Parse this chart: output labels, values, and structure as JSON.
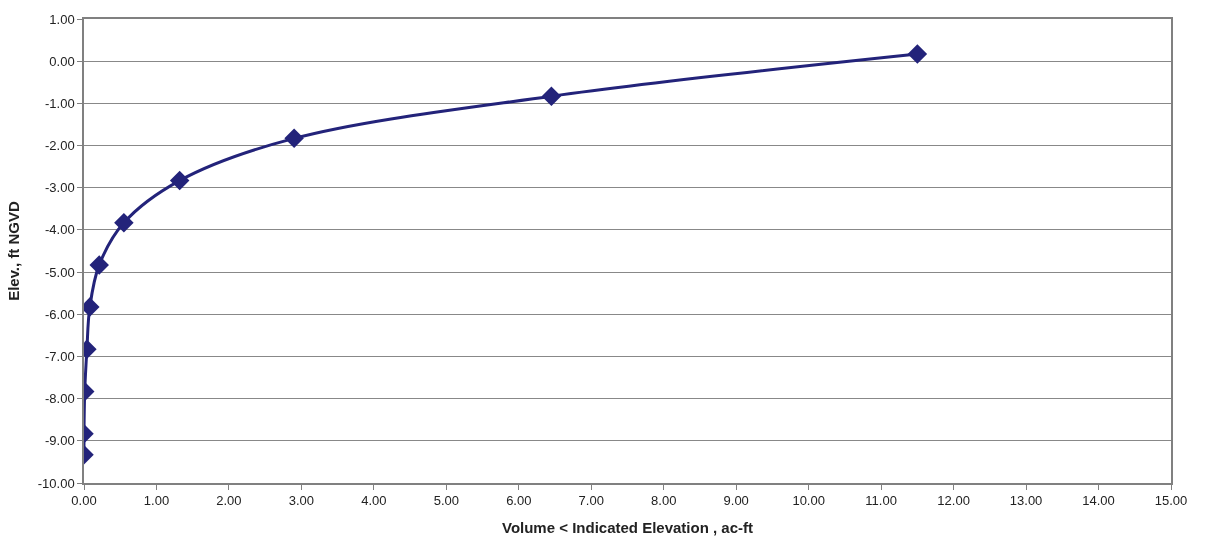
{
  "chart_data": {
    "type": "line",
    "xlabel": "Volume < Indicated Elevation , ac-ft",
    "ylabel": "Elev., ft NGVD",
    "x": [
      0,
      0,
      0.01,
      0.04,
      0.08,
      0.21,
      0.55,
      1.32,
      2.9,
      6.45,
      11.5
    ],
    "series": [
      {
        "color": "#23237a",
        "values": [
          -9.33,
          -8.83,
          -7.83,
          -6.83,
          -5.83,
          -4.83,
          -3.83,
          -2.83,
          -1.83,
          -0.83,
          0.17
        ]
      }
    ],
    "xlim": [
      0,
      15
    ],
    "ylim": [
      -10,
      1
    ],
    "xticks": [
      {
        "value": 0,
        "label": "0.00"
      },
      {
        "value": 1,
        "label": "1.00"
      },
      {
        "value": 2,
        "label": "2.00"
      },
      {
        "value": 3,
        "label": "3.00"
      },
      {
        "value": 4,
        "label": "4.00"
      },
      {
        "value": 5,
        "label": "5.00"
      },
      {
        "value": 6,
        "label": "6.00"
      },
      {
        "value": 7,
        "label": "7.00"
      },
      {
        "value": 8,
        "label": "8.00"
      },
      {
        "value": 9,
        "label": "9.00"
      },
      {
        "value": 10,
        "label": "10.00"
      },
      {
        "value": 11,
        "label": "11.00"
      },
      {
        "value": 12,
        "label": "12.00"
      },
      {
        "value": 13,
        "label": "13.00"
      },
      {
        "value": 14,
        "label": "14.00"
      },
      {
        "value": 15,
        "label": "15.00"
      }
    ],
    "yticks": [
      {
        "value": -10,
        "label": "-10.00"
      },
      {
        "value": -9,
        "label": "-9.00"
      },
      {
        "value": -8,
        "label": "-8.00"
      },
      {
        "value": -7,
        "label": "-7.00"
      },
      {
        "value": -6,
        "label": "-6.00"
      },
      {
        "value": -5,
        "label": "-5.00"
      },
      {
        "value": -4,
        "label": "-4.00"
      },
      {
        "value": -3,
        "label": "-3.00"
      },
      {
        "value": -2,
        "label": "-2.00"
      },
      {
        "value": -1,
        "label": "-1.00"
      },
      {
        "value": 0,
        "label": "0.00"
      },
      {
        "value": 1,
        "label": "1.00"
      }
    ],
    "grid": "y",
    "marker": "diamond",
    "line_style": "solid"
  }
}
